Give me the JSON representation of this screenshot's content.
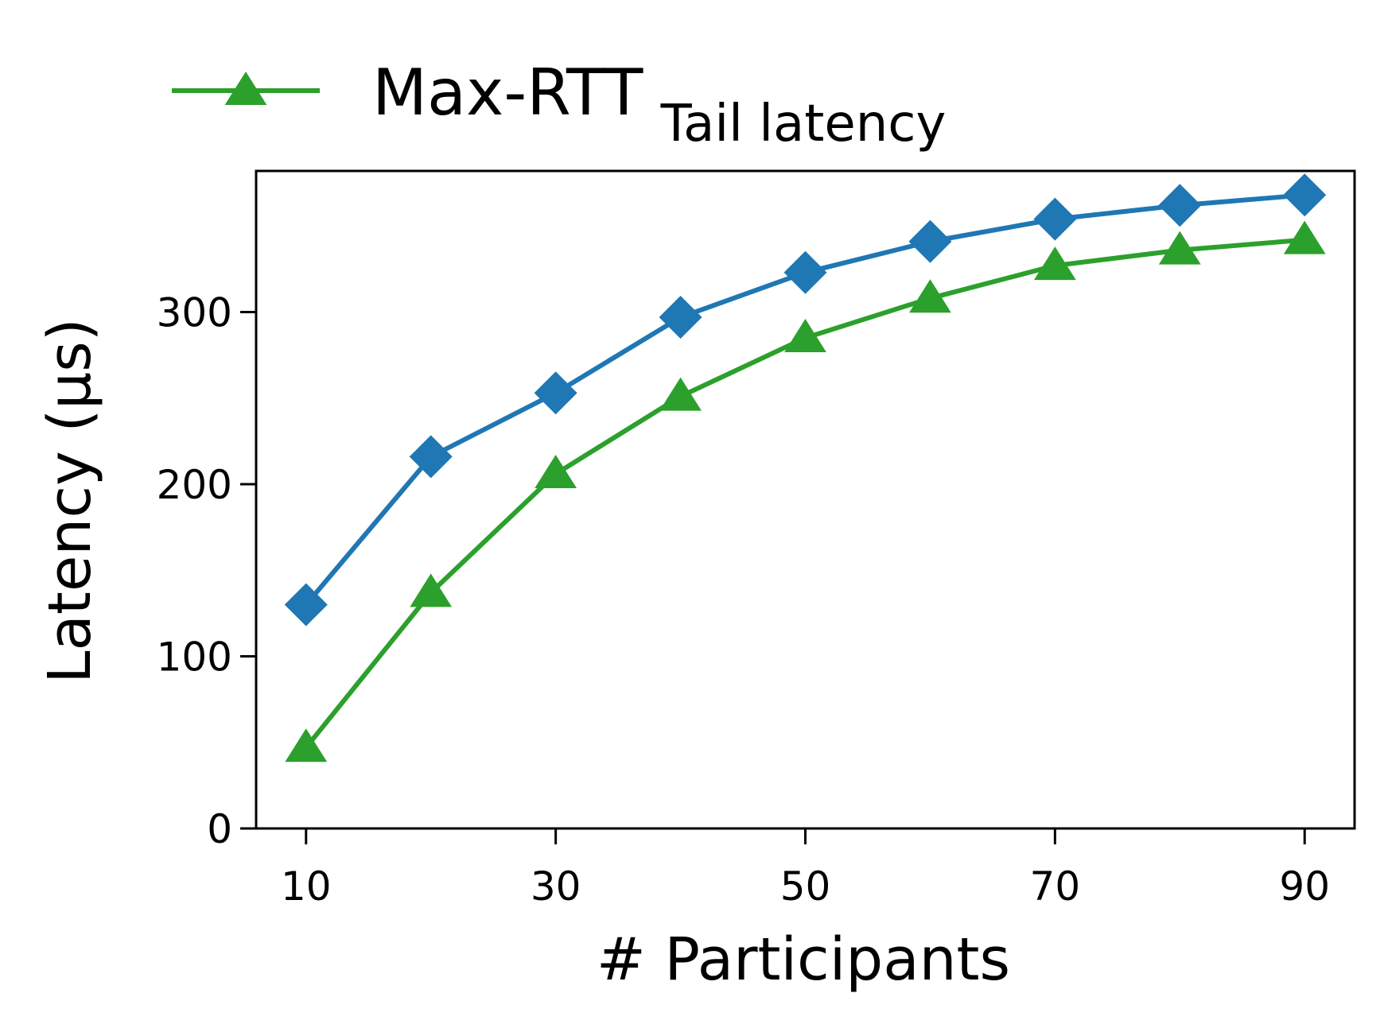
{
  "chart_data": {
    "type": "line",
    "title": "Tail latency",
    "xlabel": "# Participants",
    "ylabel": "Latency (μs)",
    "x": [
      10,
      20,
      30,
      40,
      50,
      60,
      70,
      80,
      90
    ],
    "xticks": [
      10,
      30,
      50,
      70,
      90
    ],
    "yticks": [
      0,
      100,
      200,
      300
    ],
    "xlim": [
      6,
      94
    ],
    "ylim": [
      0,
      382
    ],
    "grid": false,
    "legend_position": "top-left",
    "series": [
      {
        "name": "",
        "color": "#1f77b4",
        "marker": "diamond",
        "values": [
          130,
          216,
          253,
          297,
          323,
          341,
          354,
          362,
          368
        ]
      },
      {
        "name": "Max-RTT",
        "color": "#2ca02c",
        "marker": "triangle",
        "values": [
          47,
          137,
          206,
          251,
          285,
          308,
          327,
          336,
          342
        ]
      }
    ]
  }
}
